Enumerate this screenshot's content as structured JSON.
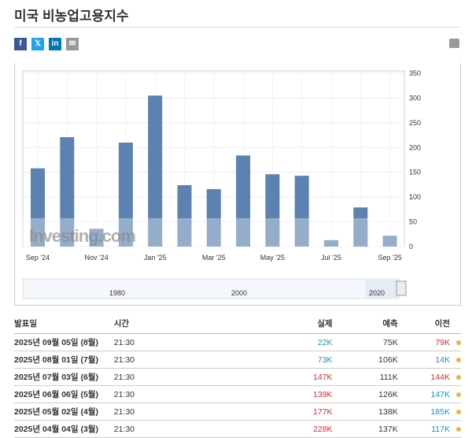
{
  "title": "미국 비농업고용지수",
  "share": [
    {
      "icon": "facebook-icon",
      "label": "f",
      "color": "#3b5998"
    },
    {
      "icon": "x-twitter-icon",
      "label": "𝕏",
      "color": "#1da1f2"
    },
    {
      "icon": "linkedin-icon",
      "label": "in",
      "color": "#0077b5"
    },
    {
      "icon": "email-icon",
      "label": "✉",
      "color": "#999999"
    }
  ],
  "chart_data": {
    "type": "bar",
    "categories": [
      "Sep '24",
      "Oct '24",
      "Nov '24",
      "Dec '24",
      "Jan '25",
      "Feb '25",
      "Mar '25",
      "Apr '25",
      "May '25",
      "Jun '25",
      "Jul '25",
      "Aug '25",
      "Sep '25"
    ],
    "values": [
      158,
      221,
      36,
      210,
      305,
      124,
      116,
      184,
      146,
      143,
      13,
      79,
      22
    ],
    "x_tick_labels": [
      "Sep '24",
      "Nov '24",
      "Jan '25",
      "Mar '25",
      "May '25",
      "Jul '25",
      "Sep '25"
    ],
    "y_ticks": [
      0,
      50,
      100,
      150,
      200,
      250,
      300,
      350
    ],
    "ylim": [
      0,
      350
    ],
    "color": "#5b82b0",
    "watermark": "Investing.com",
    "navigator_labels": [
      "1980",
      "2000",
      "2020"
    ]
  },
  "table": {
    "headers": [
      "발표일",
      "시간",
      "실제",
      "예측",
      "이전"
    ],
    "rows": [
      {
        "date": "2025년 09월 05일 (8월)",
        "time": "21:30",
        "actual": "22K",
        "actual_dir": "dn",
        "forecast": "75K",
        "previous": "79K",
        "previous_dir": "up"
      },
      {
        "date": "2025년 08월 01일 (7월)",
        "time": "21:30",
        "actual": "73K",
        "actual_dir": "dn",
        "forecast": "106K",
        "previous": "14K",
        "previous_dir": "dn"
      },
      {
        "date": "2025년 07월 03일 (6월)",
        "time": "21:30",
        "actual": "147K",
        "actual_dir": "up",
        "forecast": "111K",
        "previous": "144K",
        "previous_dir": "up"
      },
      {
        "date": "2025년 06월 06일 (5월)",
        "time": "21:30",
        "actual": "139K",
        "actual_dir": "up",
        "forecast": "126K",
        "previous": "147K",
        "previous_dir": "dn"
      },
      {
        "date": "2025년 05월 02일 (4월)",
        "time": "21:30",
        "actual": "177K",
        "actual_dir": "up",
        "forecast": "138K",
        "previous": "185K",
        "previous_dir": "dn"
      },
      {
        "date": "2025년 04월 04일 (3월)",
        "time": "21:30",
        "actual": "228K",
        "actual_dir": "up",
        "forecast": "137K",
        "previous": "117K",
        "previous_dir": "dn"
      }
    ]
  }
}
